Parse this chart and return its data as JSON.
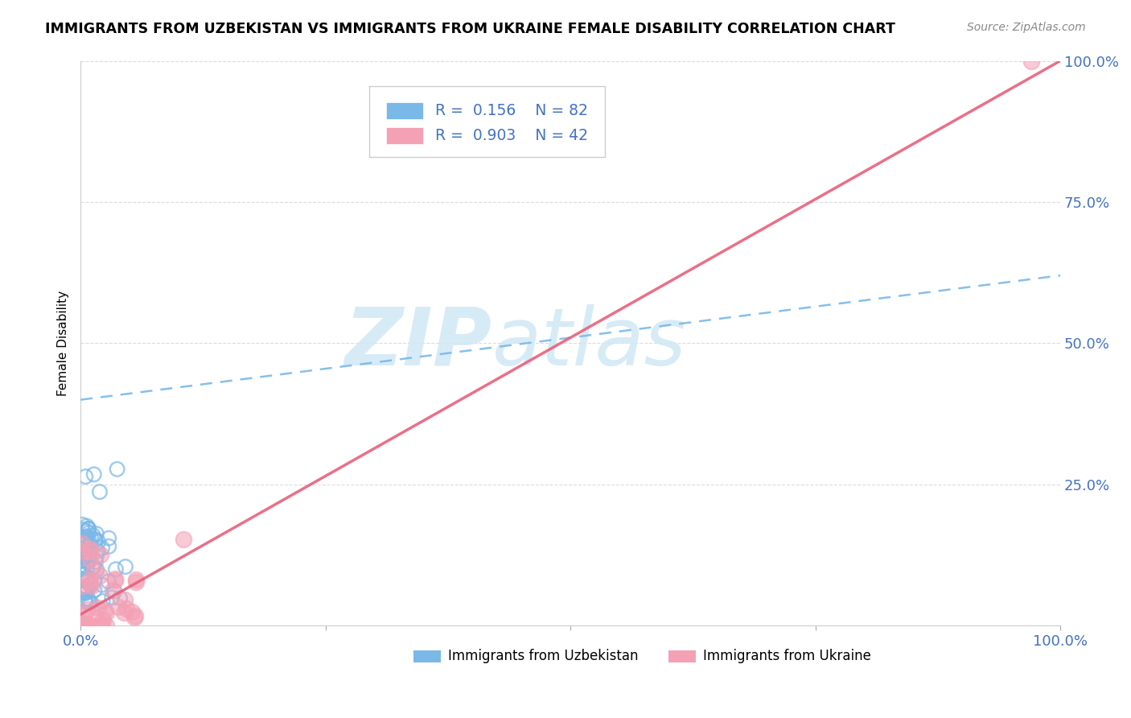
{
  "title": "IMMIGRANTS FROM UZBEKISTAN VS IMMIGRANTS FROM UKRAINE FEMALE DISABILITY CORRELATION CHART",
  "source": "Source: ZipAtlas.com",
  "ylabel": "Female Disability",
  "series1_label": "Immigrants from Uzbekistan",
  "series2_label": "Immigrants from Ukraine",
  "series1_R": 0.156,
  "series1_N": 82,
  "series2_R": 0.903,
  "series2_N": 42,
  "series1_color": "#7ab8e8",
  "series2_color": "#f4a0b5",
  "trend1_color": "#7ab8e8",
  "trend2_color": "#e8607a",
  "background_color": "#ffffff",
  "watermark_text": "ZIP",
  "watermark_text2": "atlas",
  "watermark_color": "#d0e8f5",
  "legend_text_color": "#4472c4",
  "tick_color": "#4472c4",
  "grid_color": "#cccccc",
  "trend1_intercept": 0.4,
  "trend1_slope": 0.22,
  "trend2_intercept": 0.02,
  "trend2_slope": 0.98
}
